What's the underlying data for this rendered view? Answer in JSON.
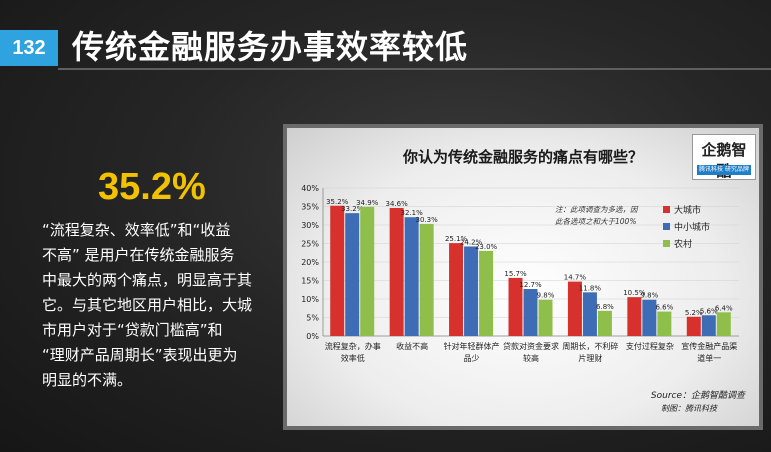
{
  "slide": {
    "number": "132",
    "title": "传统金融服务办事效率较低"
  },
  "stat": {
    "value": "35.2%",
    "lines": [
      "“流程复杂、效率低”和“收益",
      "不高” 是用户在传统金融服务",
      "中最大的两个痛点，明显高于其",
      "它。与其它地区用户相比，大城",
      "市用户对于“贷款门槛高”和",
      "“理财产品周期长”表现出更为",
      "明显的不满。"
    ]
  },
  "logo": {
    "text": "企鹅智酷",
    "sub": "腾讯科技 研究品牌"
  },
  "chart_data": {
    "type": "bar",
    "title": "你认为传统金融服务的痛点有哪些？",
    "categories": [
      [
        "流程复杂，办事",
        "效率低"
      ],
      [
        "收益不高"
      ],
      [
        "针对年轻群体产",
        "品少"
      ],
      [
        "贷款对资金要求",
        "较高"
      ],
      [
        "周期长，不利碎",
        "片理财"
      ],
      [
        "支付过程复杂"
      ],
      [
        "宣传金融产品渠",
        "道单一"
      ]
    ],
    "series": [
      {
        "name": "大城市",
        "color": "#d6312d",
        "values": [
          35.2,
          34.6,
          25.1,
          15.7,
          14.7,
          10.5,
          5.2
        ],
        "labels": [
          "35.2%",
          "34.6%",
          "25.1%",
          "15.7%",
          "14.7%",
          "10.5%",
          "5.2%"
        ]
      },
      {
        "name": "中小城市",
        "color": "#3e6db5",
        "values": [
          33.2,
          32.1,
          24.2,
          12.7,
          11.8,
          9.8,
          5.6
        ],
        "labels": [
          "33.2%",
          "32.1%",
          "24.2%",
          "12.7%",
          "11.8%",
          "9.8%",
          "5.6%"
        ]
      },
      {
        "name": "农村",
        "color": "#8fbf4a",
        "values": [
          34.9,
          30.3,
          23.0,
          9.8,
          6.8,
          6.6,
          6.4
        ],
        "labels": [
          "34.9%",
          "30.3%",
          "23.0%",
          "9.8%",
          "6.8%",
          "6.6%",
          "6.4%"
        ]
      }
    ],
    "ylim": [
      0,
      40
    ],
    "yticks": [
      "0%",
      "5%",
      "10%",
      "15%",
      "20%",
      "25%",
      "30%",
      "35%",
      "40%"
    ],
    "legend_position": "top-right",
    "note": [
      "注：此项调查为多选，因",
      "此各选项之和大于100%"
    ],
    "source": "Source：企鹅智酷调查",
    "credit": "制图：腾讯科技"
  }
}
